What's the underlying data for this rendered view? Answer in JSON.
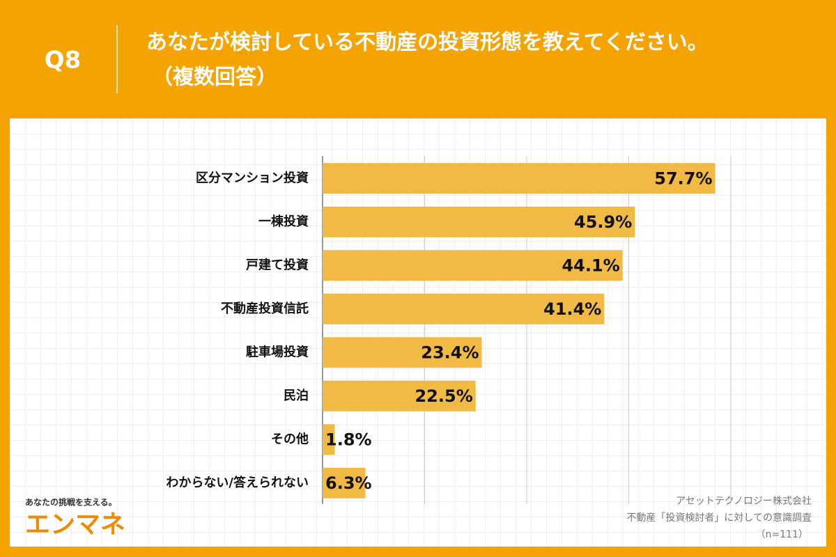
{
  "header": {
    "question": "Q8",
    "title": "あなたが検討している不動産の投資形態を教えてください。",
    "subtitle": "（複数回答）"
  },
  "chart_data": {
    "type": "hbar",
    "categories": [
      "区分マンション投資",
      "一棟投資",
      "戸建て投資",
      "不動産投資信託",
      "駐車場投資",
      "民泊",
      "その他",
      "わからない/答えられない"
    ],
    "values": [
      57.7,
      45.9,
      44.1,
      41.4,
      23.4,
      22.5,
      1.8,
      6.3
    ],
    "value_labels": [
      "57.7%",
      "45.9%",
      "44.1%",
      "41.4%",
      "23.4%",
      "22.5%",
      "1.8%",
      "6.3%"
    ],
    "color": "#f0ba44",
    "xlim": [
      0,
      60
    ],
    "xticks": [
      0,
      15,
      30,
      45,
      60
    ],
    "grid": true
  },
  "footer": {
    "tagline": "あなたの挑戦を支える。",
    "logo": "エンマネ",
    "source": [
      "アセットテクノロジー株式会社",
      "不動産「投資検討者」に対しての意識調査",
      "（n=111）"
    ]
  }
}
